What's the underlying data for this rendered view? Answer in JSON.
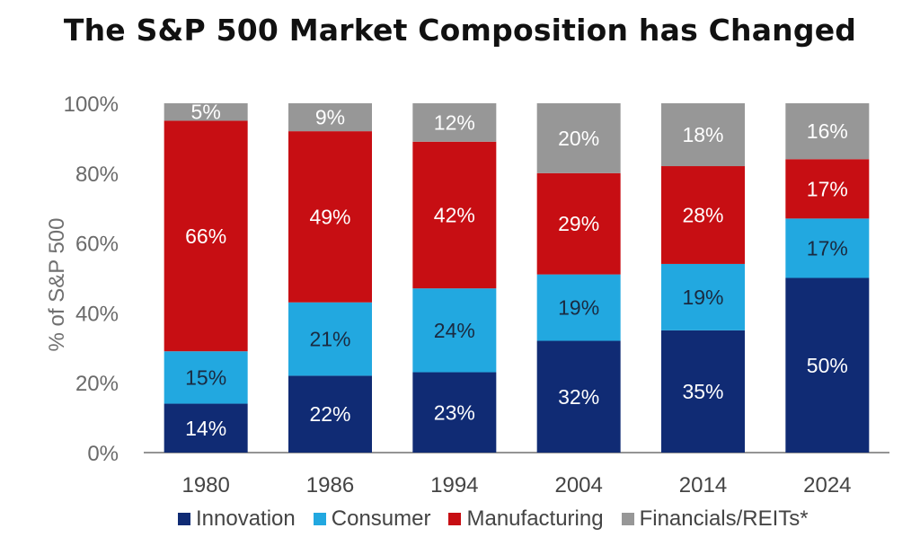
{
  "title": "The S&P 500 Market Composition has Changed",
  "chart_data": {
    "type": "bar",
    "stacked": true,
    "categories": [
      "1980",
      "1986",
      "1994",
      "2004",
      "2014",
      "2024"
    ],
    "ylabel": "% of S&P 500",
    "ylim": [
      0,
      100
    ],
    "yticks": [
      "0%",
      "20%",
      "40%",
      "60%",
      "80%",
      "100%"
    ],
    "legend_position": "bottom",
    "series": [
      {
        "name": "Innovation",
        "color": "#102b74",
        "text_color": "#ffffff",
        "values": [
          14,
          22,
          23,
          32,
          35,
          50
        ]
      },
      {
        "name": "Consumer",
        "color": "#22a8e0",
        "text_color": "#1a2a40",
        "values": [
          15,
          21,
          24,
          19,
          19,
          17
        ]
      },
      {
        "name": "Manufacturing",
        "color": "#c70e13",
        "text_color": "#ffffff",
        "values": [
          66,
          49,
          42,
          29,
          28,
          17
        ]
      },
      {
        "name": "Financials/REITs*",
        "color": "#979797",
        "text_color": "#ffffff",
        "values": [
          5,
          9,
          12,
          20,
          18,
          16
        ]
      }
    ],
    "grid": false
  }
}
